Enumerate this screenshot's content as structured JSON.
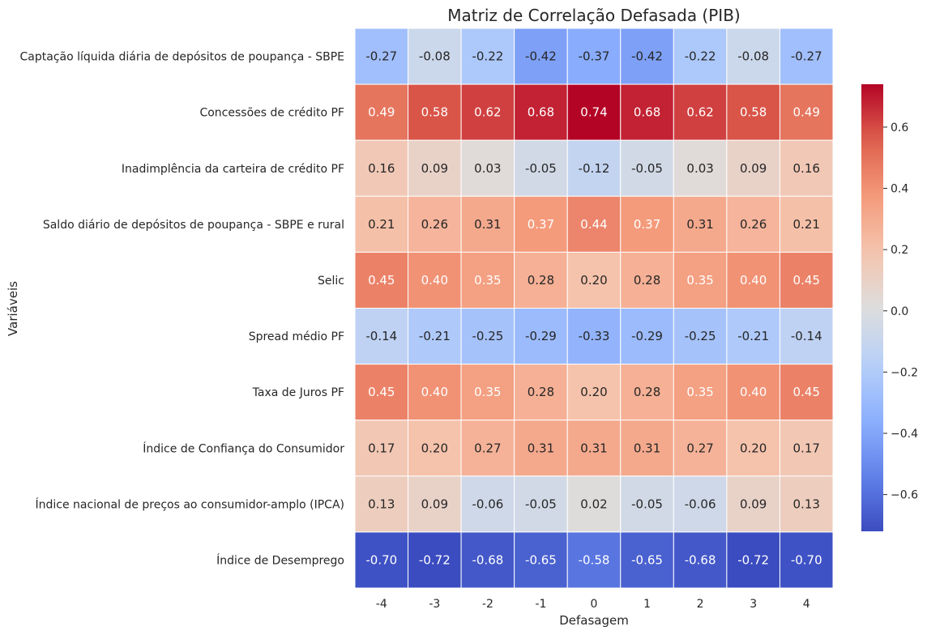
{
  "chart_data": {
    "type": "heatmap",
    "title": "Matriz de Correlação Defasada (PIB)",
    "xlabel": "Defasagem",
    "ylabel": "Variáveis",
    "x": [
      "-4",
      "-3",
      "-2",
      "-1",
      "0",
      "1",
      "2",
      "3",
      "4"
    ],
    "y": [
      "Captação líquida diária de depósitos de poupança - SBPE",
      "Concessões de crédito PF",
      "Inadimplência da carteira de crédito PF",
      "Saldo diário de depósitos de poupança - SBPE e rural",
      "Selic",
      "Spread médio PF",
      "Taxa de Juros PF",
      "Índice de Confiança do Consumidor",
      "Índice nacional de preços ao consumidor-amplo (IPCA)",
      "Índice de Desemprego"
    ],
    "values": [
      [
        -0.27,
        -0.08,
        -0.22,
        -0.42,
        -0.37,
        -0.42,
        -0.22,
        -0.08,
        -0.27
      ],
      [
        0.49,
        0.58,
        0.62,
        0.68,
        0.74,
        0.68,
        0.62,
        0.58,
        0.49
      ],
      [
        0.16,
        0.09,
        0.03,
        -0.05,
        -0.12,
        -0.05,
        0.03,
        0.09,
        0.16
      ],
      [
        0.21,
        0.26,
        0.31,
        0.37,
        0.44,
        0.37,
        0.31,
        0.26,
        0.21
      ],
      [
        0.45,
        0.4,
        0.35,
        0.28,
        0.2,
        0.28,
        0.35,
        0.4,
        0.45
      ],
      [
        -0.14,
        -0.21,
        -0.25,
        -0.29,
        -0.33,
        -0.29,
        -0.25,
        -0.21,
        -0.14
      ],
      [
        0.45,
        0.4,
        0.35,
        0.28,
        0.2,
        0.28,
        0.35,
        0.4,
        0.45
      ],
      [
        0.17,
        0.2,
        0.27,
        0.31,
        0.31,
        0.31,
        0.27,
        0.2,
        0.17
      ],
      [
        0.13,
        0.09,
        -0.06,
        -0.05,
        0.02,
        -0.05,
        -0.06,
        0.09,
        0.13
      ],
      [
        -0.7,
        -0.72,
        -0.68,
        -0.65,
        -0.58,
        -0.65,
        -0.68,
        -0.72,
        -0.7
      ]
    ],
    "value_format": "2 decimals",
    "colormap": "coolwarm",
    "colorbar": {
      "range": [
        -0.72,
        0.74
      ],
      "ticks": [
        -0.6,
        -0.4,
        -0.2,
        0.0,
        0.2,
        0.4,
        0.6
      ],
      "tick_labels": [
        "−0.6",
        "−0.4",
        "−0.2",
        "0.0",
        "0.2",
        "0.4",
        "0.6"
      ],
      "placement": "right"
    },
    "grid": false
  }
}
